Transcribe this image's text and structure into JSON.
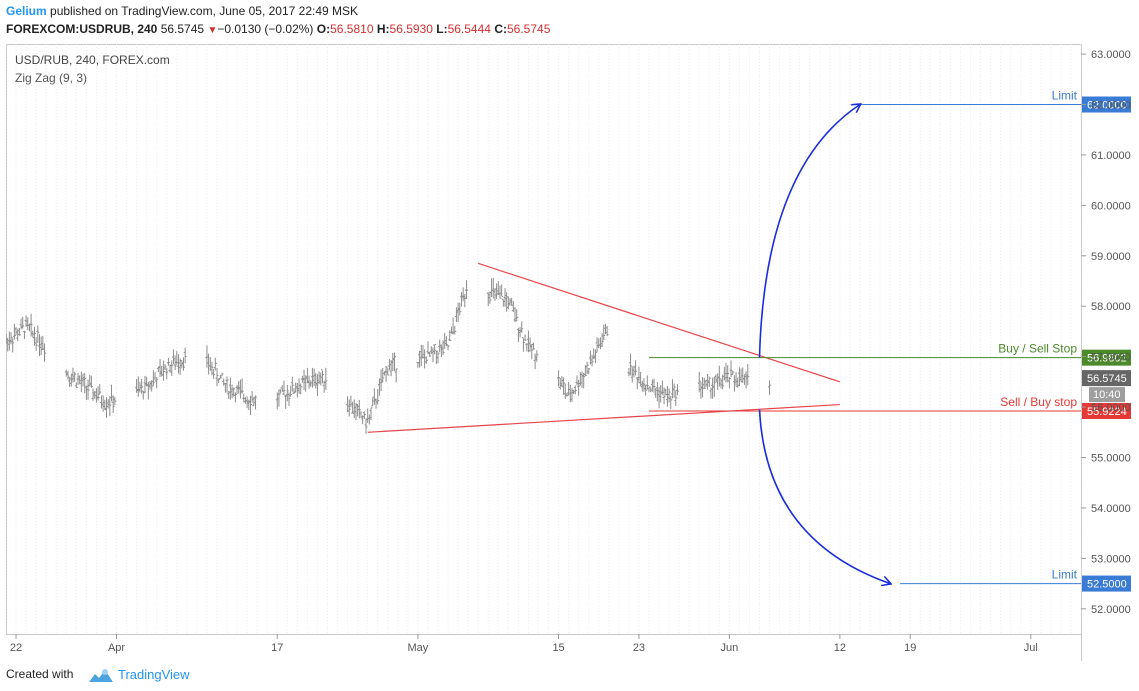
{
  "header": {
    "author": "Gelium",
    "published_text": "published on TradingView.com, June 05, 2017 22:49 MSK",
    "symbol_interval": "FOREXCOM:USDRUB, 240",
    "last_price": "56.5745",
    "change": "−0.0130 (−0.02%)",
    "o_label": "O:",
    "o_value": "56.5810",
    "h_label": "H:",
    "h_value": "56.5930",
    "l_label": "L:",
    "l_value": "56.5444",
    "c_label": "C:",
    "c_value": "56.5745"
  },
  "legend": {
    "instrument": "USD/RUB, 240, FOREX.com",
    "indicator": "Zig Zag (9, 3)"
  },
  "footer": {
    "created_with": "Created with",
    "brand": "TradingView"
  },
  "colors": {
    "accent": "#2196f3",
    "triangle": "#e8454b",
    "buy_sell_stop": "#4a8a2a",
    "sell_buy_stop": "#e53935",
    "arrows": "#1a2ee0",
    "limit": "#3a7bd5",
    "bars": "#8c8c8c"
  },
  "chart_data": {
    "type": "bar",
    "title": "USD/RUB, 240, FOREX.com",
    "y_axis": {
      "ticks": [
        52.0,
        53.0,
        54.0,
        55.0,
        56.0,
        57.0,
        58.0,
        59.0,
        60.0,
        61.0,
        62.0,
        63.0
      ],
      "tick_labels": [
        "52.0000",
        "53.0000",
        "54.0000",
        "55.0000",
        "56.0000",
        "57.0000",
        "58.0000",
        "59.0000",
        "60.0000",
        "61.0000",
        "62.0000",
        "63.0000"
      ],
      "ylim": [
        51.5,
        63.2
      ]
    },
    "x_axis": {
      "tick_labels": [
        "22",
        "Apr",
        "17",
        "May",
        "15",
        "23",
        "Jun",
        "12",
        "19",
        "Jul"
      ],
      "tick_dates": [
        "2017-03-22",
        "2017-04-01",
        "2017-04-17",
        "2017-05-01",
        "2017-05-15",
        "2017-05-23",
        "2017-06-01",
        "2017-06-12",
        "2017-06-19",
        "2017-07-01"
      ],
      "xlim": [
        "2017-03-21",
        "2017-07-06"
      ]
    },
    "price_series": {
      "name": "USD/RUB",
      "dates": [
        "2017-03-21",
        "2017-03-23",
        "2017-03-25",
        "2017-03-27",
        "2017-03-29",
        "2017-03-31",
        "2017-04-02",
        "2017-04-04",
        "2017-04-06",
        "2017-04-08",
        "2017-04-10",
        "2017-04-12",
        "2017-04-14",
        "2017-04-16",
        "2017-04-18",
        "2017-04-20",
        "2017-04-22",
        "2017-04-24",
        "2017-04-26",
        "2017-04-28",
        "2017-04-30",
        "2017-05-02",
        "2017-05-04",
        "2017-05-06",
        "2017-05-08",
        "2017-05-10",
        "2017-05-12",
        "2017-05-14",
        "2017-05-16",
        "2017-05-18",
        "2017-05-20",
        "2017-05-22",
        "2017-05-24",
        "2017-05-26",
        "2017-05-28",
        "2017-05-30",
        "2017-06-01",
        "2017-06-03",
        "2017-06-05"
      ],
      "values": [
        57.3,
        57.6,
        57.2,
        56.7,
        56.4,
        56.1,
        56.2,
        56.4,
        56.8,
        57.0,
        56.9,
        56.4,
        56.2,
        56.0,
        56.3,
        56.5,
        56.6,
        56.1,
        55.7,
        56.8,
        56.9,
        57.0,
        57.2,
        58.5,
        58.3,
        58.1,
        57.2,
        56.9,
        56.2,
        56.8,
        57.6,
        56.8,
        56.4,
        56.2,
        56.5,
        56.4,
        56.6,
        56.5,
        56.57
      ]
    },
    "trend_lines": [
      {
        "name": "upper-triangle-line",
        "from": [
          "2017-05-07",
          58.85
        ],
        "to": [
          "2017-06-12",
          56.5
        ]
      },
      {
        "name": "lower-triangle-line",
        "from": [
          "2017-04-26",
          55.5
        ],
        "to": [
          "2017-06-12",
          56.05
        ]
      }
    ],
    "levels": [
      {
        "label": "Buy / Sell Stop",
        "value": 56.9802,
        "value_label": "56.9802",
        "from": "2017-05-24",
        "color_key": "buy_sell_stop"
      },
      {
        "label": "Sell / Buy stop",
        "value": 55.9224,
        "value_label": "55.9224",
        "from": "2017-05-24",
        "color_key": "sell_buy_stop"
      },
      {
        "label": "Limit",
        "value": 62.0,
        "value_label": "62.0000",
        "from": "2017-06-14",
        "color_key": "limit"
      },
      {
        "label": "Limit",
        "value": 52.5,
        "value_label": "52.5000",
        "from": "2017-06-18",
        "color_key": "limit"
      }
    ],
    "projections": [
      {
        "name": "up-projection",
        "from": [
          "2017-06-04",
          56.98
        ],
        "to": [
          "2017-06-14",
          62.0
        ]
      },
      {
        "name": "down-projection",
        "from": [
          "2017-06-04",
          55.95
        ],
        "to": [
          "2017-06-17",
          52.5
        ]
      }
    ],
    "price_label": {
      "value": 56.5745,
      "text": "56.5745"
    },
    "countdown": "10:40"
  }
}
